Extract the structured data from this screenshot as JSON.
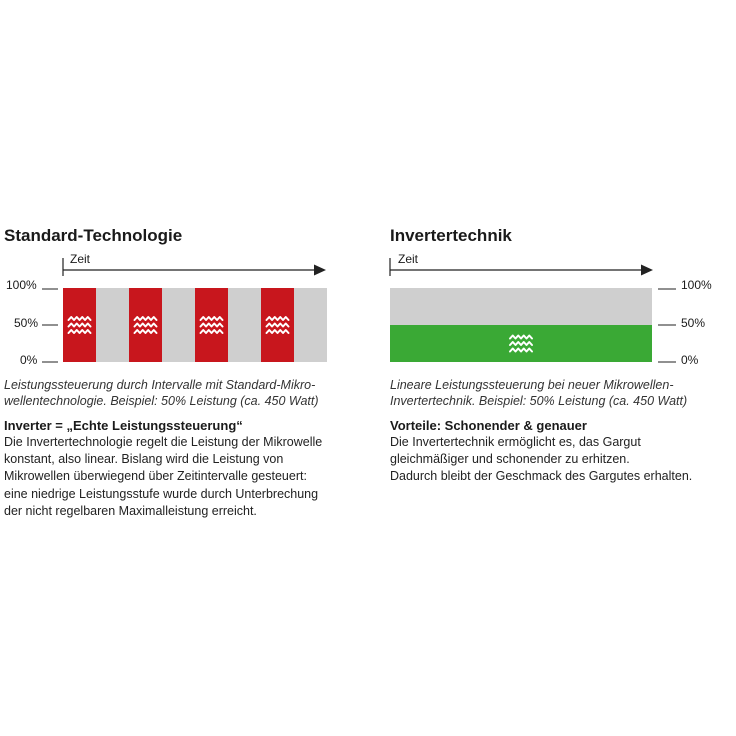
{
  "left": {
    "title": "Standard-Technologie",
    "axis_label": "Zeit",
    "ticks": [
      "100%",
      "50%",
      "0%"
    ],
    "caption_lines": [
      "Leistungssteuerung durch Intervalle mit Standard-Mikro-",
      "wellentechnologie. Beispiel: 50% Leistung (ca. 450 Watt)"
    ],
    "subtitle": "Inverter = „Echte Leistungssteuerung“",
    "body_lines": [
      "Die Invertertechnologie regelt die Leistung der Mikrowelle",
      "konstant, also linear. Bislang wird die Leistung von",
      "Mikrowellen überwiegend über Zeitintervalle gesteuert:",
      "eine niedrige Leistungsstufe wurde durch Unterbrechung",
      "der nicht regelbaren Maximalleistung erreicht."
    ],
    "pulse_count": 4,
    "pulse_level": 1.0,
    "colors": {
      "pulse": "#c8161d",
      "background": "#cfcfcf"
    }
  },
  "right": {
    "title": "Invertertechnik",
    "axis_label": "Zeit",
    "ticks": [
      "100%",
      "50%",
      "0%"
    ],
    "caption_lines": [
      "Lineare Leistungssteuerung bei neuer Mikrowellen-",
      "Invertertechnik. Beispiel: 50% Leistung (ca. 450 Watt)"
    ],
    "subtitle": "Vorteile: Schonender & genauer",
    "body_lines": [
      "Die Invertertechnik ermöglicht es, das Gargut",
      "gleichmäßiger und schonender zu erhitzen.",
      "Dadurch bleibt der Geschmack des Gargutes erhalten."
    ],
    "level": 0.5,
    "colors": {
      "fill": "#3aa935",
      "background": "#cfcfcf"
    }
  },
  "icon": "heat-wave-icon"
}
